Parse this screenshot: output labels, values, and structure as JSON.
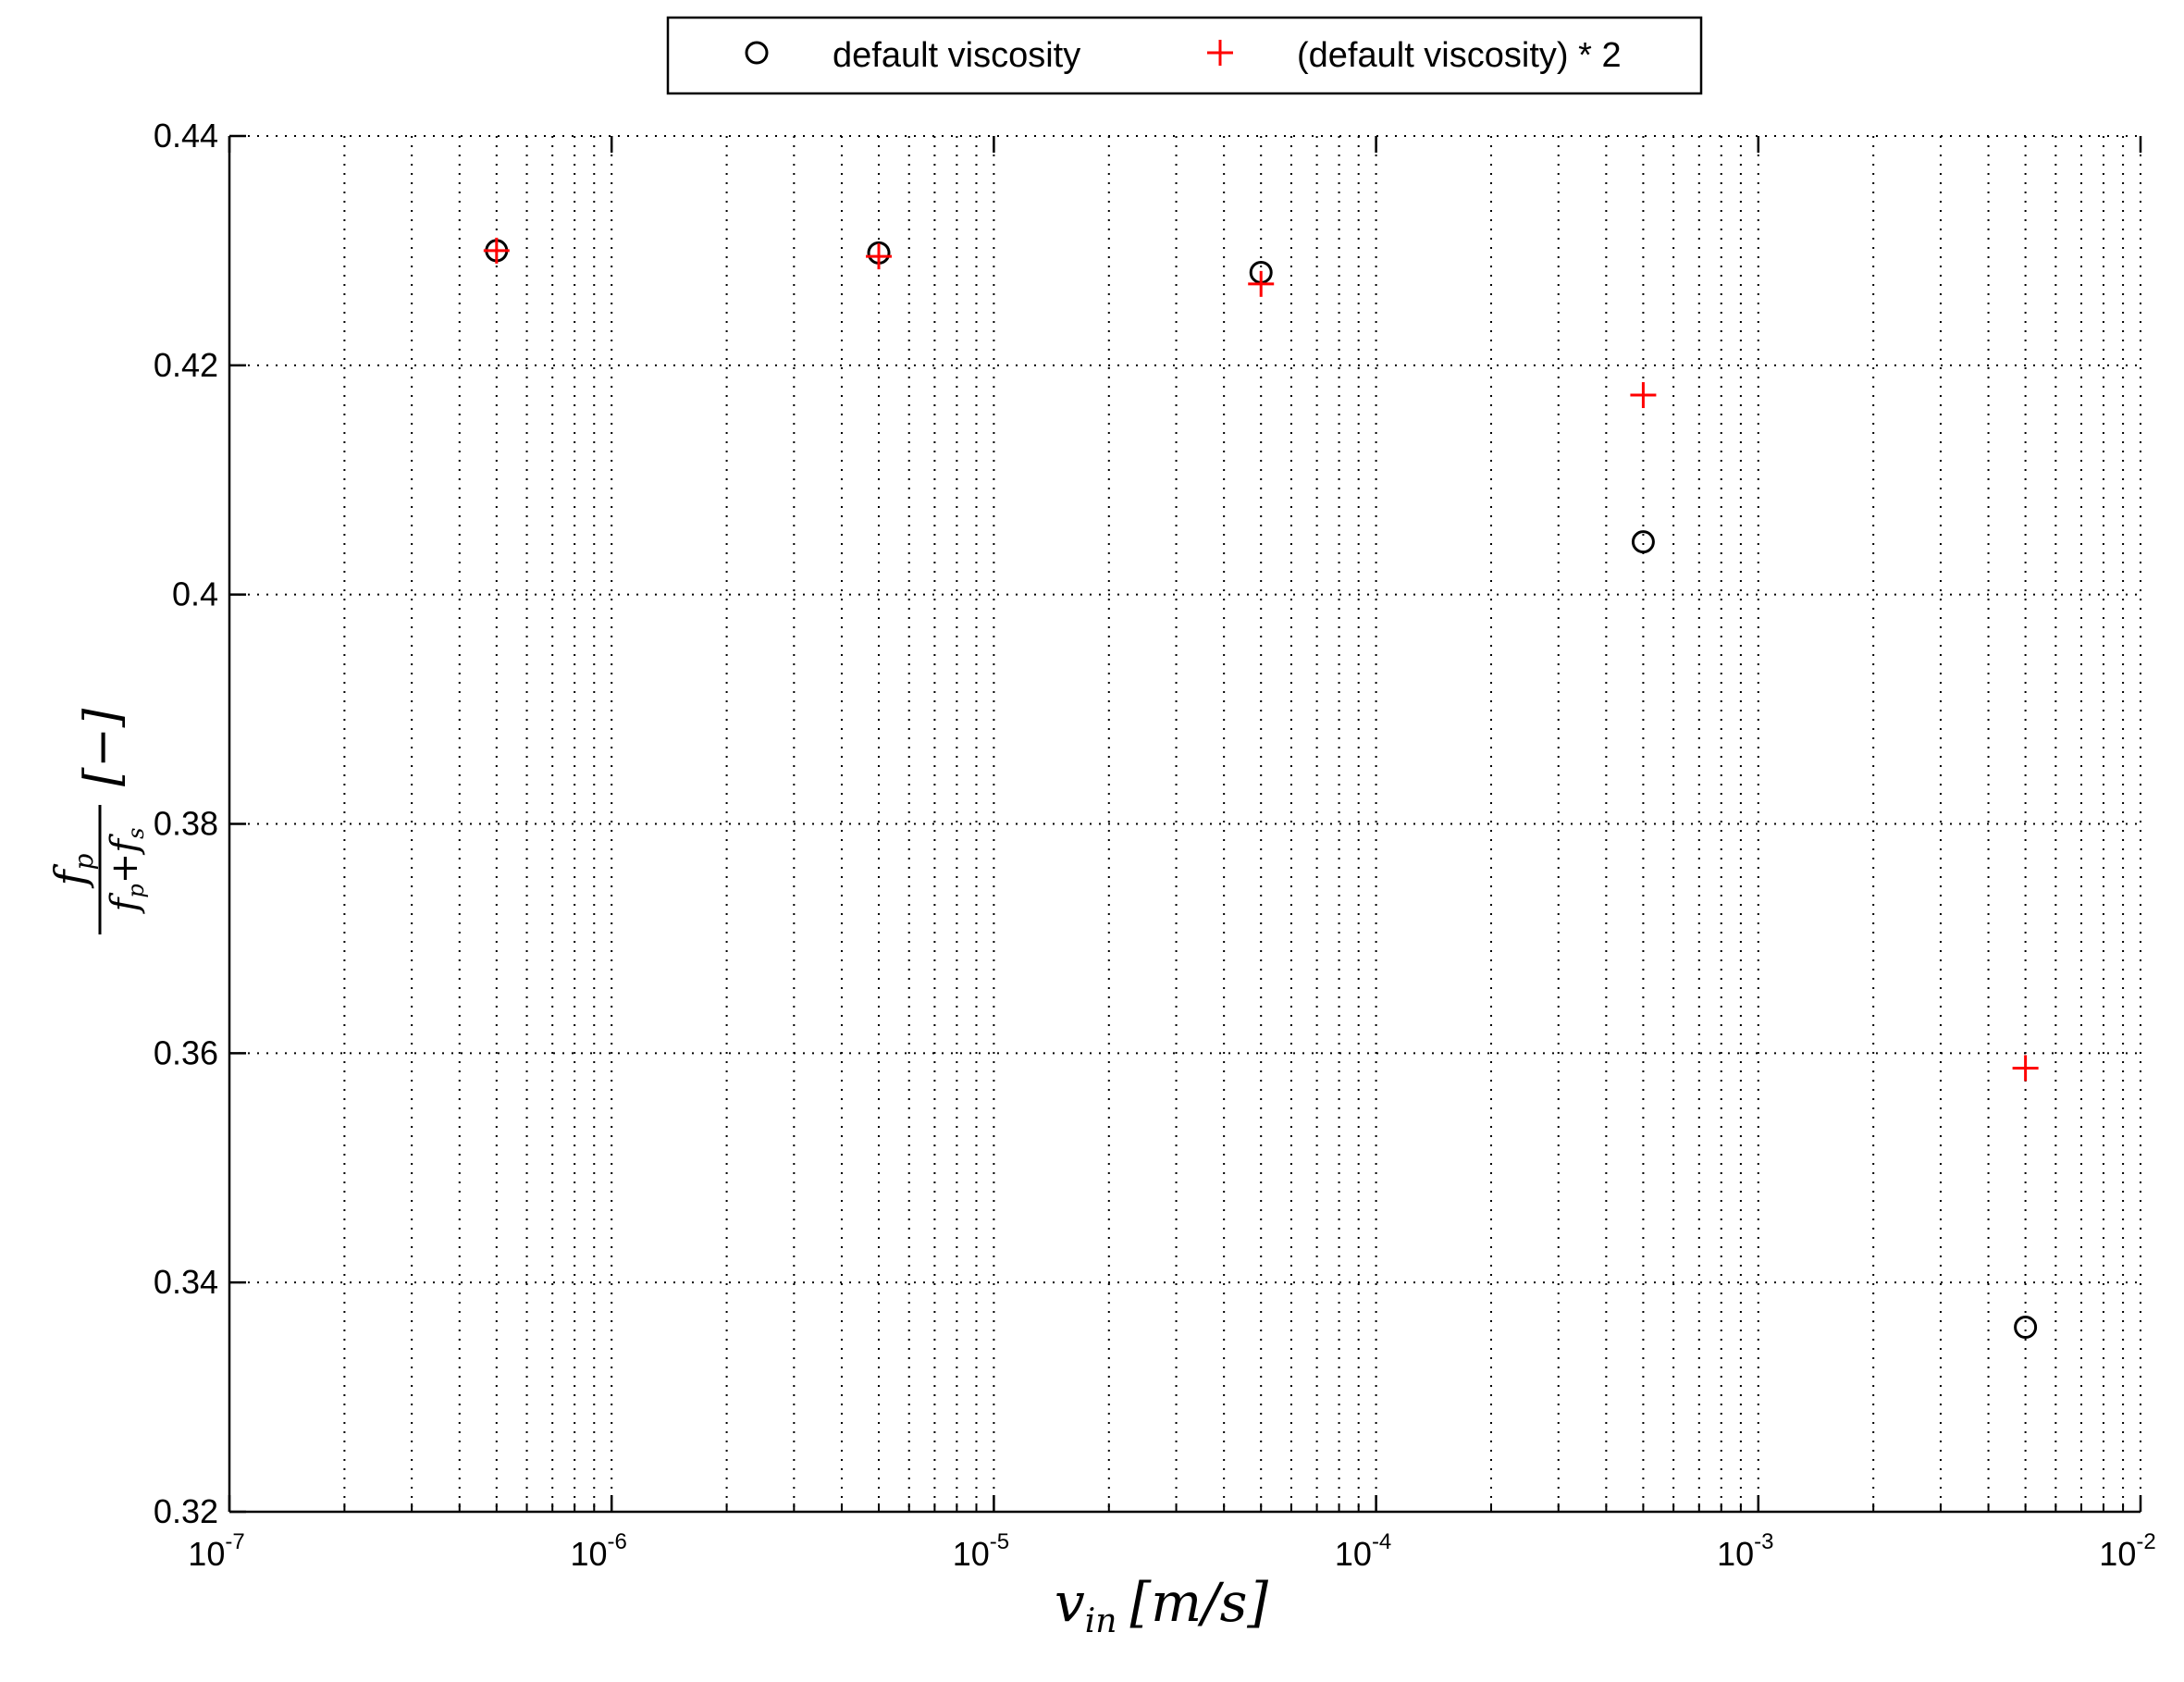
{
  "chart_data": {
    "type": "scatter",
    "xlabel": "v_in [m/s]",
    "ylabel": "f_p/(f_p+f_s) [−]",
    "xscale": "log",
    "xlim": [
      1e-07,
      0.01
    ],
    "ylim": [
      0.32,
      0.44
    ],
    "grid": true,
    "legend_position": "top-center",
    "x_ticks": [
      {
        "base": "10",
        "exp": "-7"
      },
      {
        "base": "10",
        "exp": "-6"
      },
      {
        "base": "10",
        "exp": "-5"
      },
      {
        "base": "10",
        "exp": "-4"
      },
      {
        "base": "10",
        "exp": "-3"
      },
      {
        "base": "10",
        "exp": "-2"
      }
    ],
    "y_ticks": [
      "0.32",
      "0.34",
      "0.36",
      "0.38",
      "0.4",
      "0.42",
      "0.44"
    ],
    "series": [
      {
        "name": "default viscosity",
        "marker": "circle",
        "color": "#000000",
        "x": [
          5e-07,
          5e-06,
          5e-05,
          0.0005,
          0.005
        ],
        "y": [
          0.43,
          0.4298,
          0.4281,
          0.4046,
          0.3361
        ]
      },
      {
        "name": "(default viscosity) * 2",
        "marker": "plus",
        "color": "#ff0000",
        "x": [
          5e-07,
          5e-06,
          5e-05,
          0.0005,
          0.005
        ],
        "y": [
          0.43,
          0.4295,
          0.4271,
          0.4174,
          0.3587
        ]
      }
    ]
  },
  "labels": {
    "x_main": "v",
    "x_sub": "in",
    "x_units": "[m/s]",
    "y_num_main": "f",
    "y_num_sub": "p",
    "y_den_a_main": "f",
    "y_den_a_sub": "p",
    "y_den_plus": "+",
    "y_den_b_main": "f",
    "y_den_b_sub": "s",
    "y_units": "[−]"
  }
}
